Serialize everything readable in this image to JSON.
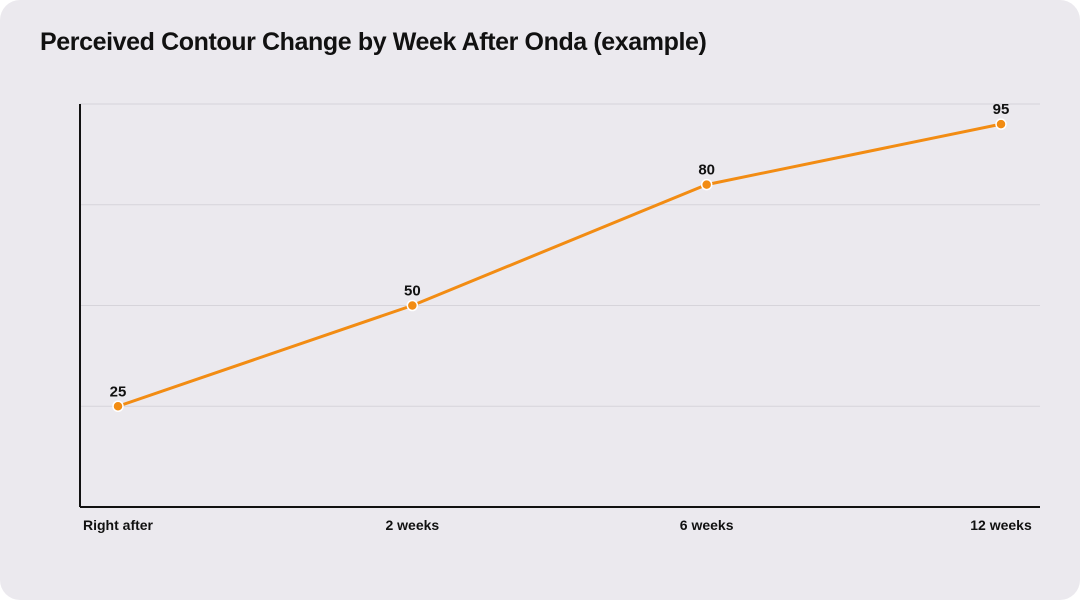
{
  "chart_data": {
    "type": "line",
    "title": "Perceived Contour Change by Week After Onda (example)",
    "categories": [
      "Right after",
      "2 weeks",
      "6 weeks",
      "12 weeks"
    ],
    "series": [
      {
        "values": [
          25,
          50,
          80,
          95
        ],
        "color": "#f28c13"
      }
    ],
    "ylim": [
      0,
      100
    ],
    "xlabel": "",
    "ylabel": "",
    "grid": true,
    "legend": "none",
    "colors": {
      "background": "#ebe9ee",
      "gridline": "#d6d4da",
      "axis": "#111111",
      "line": "#f28c13"
    }
  }
}
